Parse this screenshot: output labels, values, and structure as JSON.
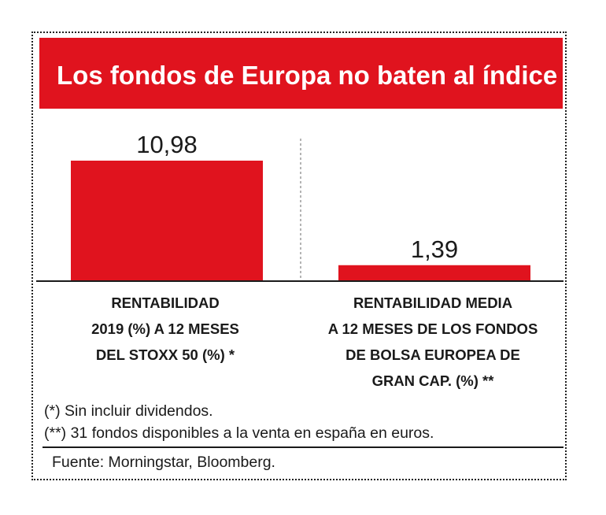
{
  "title": "Los fondos de Europa no baten al índice",
  "chart_data": {
    "type": "bar",
    "categories": [
      [
        "RENTABILIDAD",
        "2019 (%) A 12 MESES",
        "DEL STOXX 50 (%) *"
      ],
      [
        "RENTABILIDAD MEDIA",
        "A 12 MESES DE LOS FONDOS",
        "DE BOLSA EUROPEA DE",
        "GRAN CAP. (%) **"
      ]
    ],
    "values": [
      10.98,
      1.39
    ],
    "value_labels": [
      "10,98",
      "1,39"
    ],
    "ylim": [
      0,
      10.98
    ],
    "bar_color": "#e0131e",
    "grid": false
  },
  "footnotes": [
    "(*) Sin incluir dividendos.",
    "(**) 31 fondos disponibles a la venta en españa en euros."
  ],
  "source": "Fuente: Morningstar, Bloomberg."
}
